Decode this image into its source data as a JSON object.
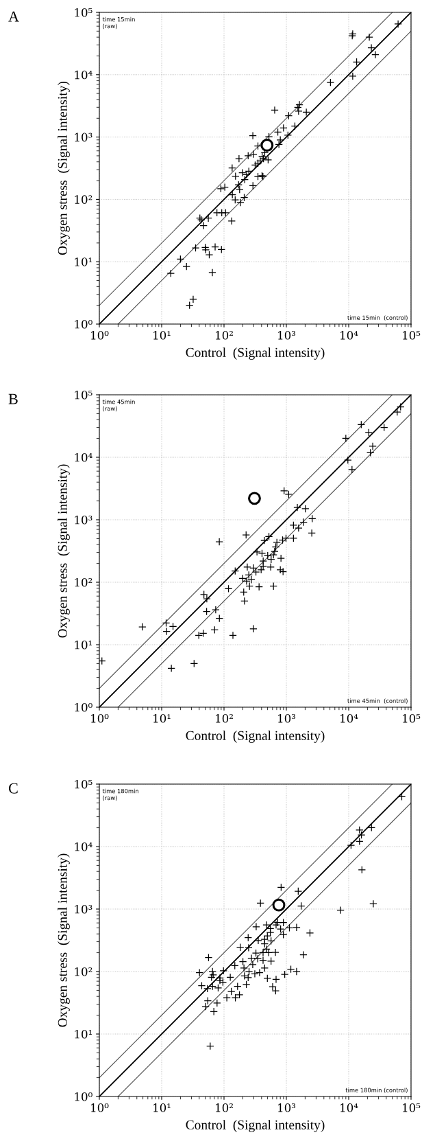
{
  "chart_data": [
    {
      "type": "scatter",
      "title": "A",
      "xlabel": "Control  (Signal intensity)",
      "ylabel": "Oxygen stress  (Signal intensity)",
      "annotations": [
        "time 15min\n(raw)",
        "time 15min  (control)"
      ],
      "log": "xy",
      "grid": true,
      "legend": false,
      "xlim": [
        1,
        100000
      ],
      "ylim": [
        1,
        100000
      ],
      "xticks": [
        {
          "value": 1,
          "label": "10⁰"
        },
        {
          "value": 10,
          "label": "10¹"
        },
        {
          "value": 100,
          "label": "10²"
        },
        {
          "value": 1000,
          "label": "10³"
        },
        {
          "value": 10000,
          "label": "10⁴"
        },
        {
          "value": 100000,
          "label": "10⁵"
        }
      ],
      "yticks": [
        {
          "value": 1,
          "label": "10⁰"
        },
        {
          "value": 10,
          "label": "10¹"
        },
        {
          "value": 100,
          "label": "10²"
        },
        {
          "value": 1000,
          "label": "10³"
        },
        {
          "value": 10000,
          "label": "10⁴"
        },
        {
          "value": 100000,
          "label": "10⁵"
        }
      ],
      "series": [
        {
          "type": "line",
          "color": "#000000",
          "marker": "none",
          "line_style": "solid",
          "x": [
            1,
            100000
          ],
          "values": [
            1,
            100000
          ]
        },
        {
          "type": "line",
          "color": "#555555",
          "marker": "none",
          "line_style": "solid",
          "x": [
            1,
            50000
          ],
          "values": [
            2,
            100000
          ]
        },
        {
          "type": "line",
          "color": "#555555",
          "marker": "none",
          "line_style": "solid",
          "x": [
            2,
            100000
          ],
          "values": [
            1,
            50000
          ]
        },
        {
          "color": "#000000",
          "marker": "cross",
          "x": [
            62000,
            11600,
            11400,
            21400,
            23100,
            26800,
            13400,
            11600,
            5100,
            1620,
            1530,
            1570,
            2090,
            650,
            1090,
            1370,
            900,
            730,
            1060,
            290,
            525,
            800,
            760,
            350,
            450,
            410,
            510,
            430,
            174,
            244,
            296,
            381,
            350,
            316,
            135,
            197,
            250,
            230,
            153,
            350,
            407,
            421,
            215,
            171,
            178,
            291,
            89,
            103,
            136,
            151,
            183,
            211,
            77,
            92,
            106,
            133,
            41,
            43,
            56,
            47,
            35,
            50,
            51,
            72,
            91,
            58,
            20,
            25,
            14,
            65,
            32,
            28
          ],
          "values": [
            65000,
            45000,
            42000,
            40000,
            27000,
            21000,
            16000,
            9500,
            7500,
            3300,
            3000,
            2600,
            2500,
            2700,
            2200,
            1500,
            1400,
            1200,
            1070,
            1050,
            1010,
            900,
            760,
            720,
            560,
            490,
            430,
            450,
            450,
            500,
            530,
            415,
            380,
            356,
            320,
            267,
            283,
            250,
            235,
            233,
            240,
            233,
            207,
            171,
            144,
            166,
            148,
            157,
            119,
            98,
            89,
            107,
            61,
            61,
            61,
            45,
            50,
            47,
            50,
            38,
            16.6,
            17,
            15.5,
            17.3,
            15.7,
            12.9,
            11,
            8.4,
            6.5,
            6.7,
            2.5,
            2.0
          ]
        },
        {
          "color": "#000000",
          "marker": "circle",
          "x": [
            490
          ],
          "values": [
            740
          ]
        }
      ]
    },
    {
      "type": "scatter",
      "title": "B",
      "xlabel": "Control  (Signal intensity)",
      "ylabel": "Oxygen stress  (Signal intensity)",
      "annotations": [
        "time 45min\n(raw)",
        "time 45min  (control)"
      ],
      "log": "xy",
      "grid": true,
      "legend": false,
      "xlim": [
        1,
        100000
      ],
      "ylim": [
        1,
        100000
      ],
      "xticks": [
        {
          "value": 1,
          "label": "10⁰"
        },
        {
          "value": 10,
          "label": "10¹"
        },
        {
          "value": 100,
          "label": "10²"
        },
        {
          "value": 1000,
          "label": "10³"
        },
        {
          "value": 10000,
          "label": "10⁴"
        },
        {
          "value": 100000,
          "label": "10⁵"
        }
      ],
      "yticks": [
        {
          "value": 1,
          "label": "10⁰"
        },
        {
          "value": 10,
          "label": "10¹"
        },
        {
          "value": 100,
          "label": "10²"
        },
        {
          "value": 1000,
          "label": "10³"
        },
        {
          "value": 10000,
          "label": "10⁴"
        },
        {
          "value": 100000,
          "label": "10⁵"
        }
      ],
      "series": [
        {
          "type": "line",
          "color": "#000000",
          "marker": "none",
          "line_style": "solid",
          "x": [
            1,
            100000
          ],
          "values": [
            1,
            100000
          ]
        },
        {
          "type": "line",
          "color": "#555555",
          "marker": "none",
          "line_style": "solid",
          "x": [
            1,
            50000
          ],
          "values": [
            2,
            100000
          ]
        },
        {
          "type": "line",
          "color": "#555555",
          "marker": "none",
          "line_style": "solid",
          "x": [
            2,
            100000
          ],
          "values": [
            1,
            50000
          ]
        },
        {
          "color": "#000000",
          "marker": "cross",
          "x": [
            68000,
            60000,
            15900,
            21000,
            37000,
            9000,
            24300,
            22300,
            9700,
            11300,
            920,
            1090,
            1500,
            2020,
            2600,
            1890,
            1300,
            1570,
            2560,
            226,
            84,
            525,
            444,
            987,
            1300,
            869,
            705,
            676,
            648,
            621,
            338,
            407,
            502,
            820,
            425,
            570,
            425,
            561,
            236,
            296,
            394,
            325,
            800,
            885,
            151,
            250,
            199,
            274,
            230,
            256,
            365,
            621,
            118,
            207,
            213,
            47.6,
            53,
            73.6,
            52.6,
            84.3,
            296,
            70.6,
            46.4,
            39.4,
            139,
            11.8,
            15.2,
            12,
            4.9,
            1.1,
            33.1,
            14.3
          ],
          "values": [
            64000,
            53000,
            33400,
            24900,
            29900,
            20100,
            15000,
            11800,
            9000,
            6350,
            2900,
            2560,
            1570,
            1500,
            1040,
            915,
            820,
            735,
            611,
            570,
            444,
            538,
            467,
            507,
            507,
            474,
            436,
            368,
            311,
            274,
            306,
            291,
            267,
            242,
            218,
            232,
            180,
            175,
            175,
            169,
            158,
            146,
            158,
            148,
            151,
            131,
            115,
            110,
            104,
            86.5,
            84.3,
            86.5,
            78.7,
            69.5,
            50,
            63.8,
            54.3,
            36.3,
            34,
            26.4,
            18,
            17.3,
            15.2,
            14.1,
            14.1,
            22.3,
            19.6,
            16.3,
            19.3,
            5.5,
            5.0,
            4.2
          ]
        },
        {
          "color": "#000000",
          "marker": "circle",
          "x": [
            308
          ],
          "values": [
            2200
          ]
        }
      ]
    },
    {
      "type": "scatter",
      "title": "C",
      "xlabel": "Control  (Signal intensity)",
      "ylabel": "Oxygen stress  (Signal intensity)",
      "annotations": [
        "time 180min\n(raw)",
        "time 180min (control)"
      ],
      "log": "xy",
      "grid": true,
      "legend": false,
      "xlim": [
        1,
        100000
      ],
      "ylim": [
        1,
        100000
      ],
      "xticks": [
        {
          "value": 1,
          "label": "10⁰"
        },
        {
          "value": 10,
          "label": "10¹"
        },
        {
          "value": 100,
          "label": "10²"
        },
        {
          "value": 1000,
          "label": "10³"
        },
        {
          "value": 10000,
          "label": "10⁴"
        },
        {
          "value": 100000,
          "label": "10⁵"
        }
      ],
      "yticks": [
        {
          "value": 1,
          "label": "10⁰"
        },
        {
          "value": 10,
          "label": "10¹"
        },
        {
          "value": 100,
          "label": "10²"
        },
        {
          "value": 1000,
          "label": "10³"
        },
        {
          "value": 10000,
          "label": "10⁴"
        },
        {
          "value": 100000,
          "label": "10⁵"
        }
      ],
      "series": [
        {
          "type": "line",
          "color": "#000000",
          "marker": "none",
          "line_style": "solid",
          "x": [
            1,
            100000
          ],
          "values": [
            1,
            100000
          ]
        },
        {
          "type": "line",
          "color": "#555555",
          "marker": "none",
          "line_style": "solid",
          "x": [
            1,
            50000
          ],
          "values": [
            2,
            100000
          ]
        },
        {
          "type": "line",
          "color": "#555555",
          "marker": "none",
          "line_style": "solid",
          "x": [
            2,
            100000
          ],
          "values": [
            1,
            50000
          ]
        },
        {
          "color": "#000000",
          "marker": "cross",
          "x": [
            71000,
            14900,
            23200,
            16000,
            14900,
            10900,
            16300,
            24800,
            7400,
            824,
            1550,
            384,
            1730,
            726,
            896,
            684,
            480,
            328,
            553,
            809,
            1120,
            1460,
            2390,
            896,
            553,
            496,
            244,
            448,
            354,
            568,
            448,
            182,
            248,
            480,
            325,
            423,
            521,
            667,
            1880,
            56.5,
            275,
            348,
            423,
            568,
            201,
            149,
            289,
            448,
            209,
            1180,
            1460,
            40.4,
            65.3,
            98,
            67,
            252,
            312,
            372,
            942,
            63,
            86,
            126,
            213,
            244,
            496,
            684,
            86,
            96,
            43.9,
            65.3,
            54.2,
            80.5,
            165,
            228,
            603,
            673,
            131,
            111,
            152,
            177,
            55,
            77.3,
            50.7,
            68.7,
            60
          ],
          "values": [
            63000,
            18400,
            20100,
            15300,
            12100,
            10500,
            4250,
            1210,
            959,
            2230,
            1930,
            1240,
            1120,
            607,
            607,
            558,
            558,
            521,
            488,
            480,
            500,
            508,
            415,
            388,
            423,
            372,
            348,
            328,
            314,
            309,
            277,
            244,
            240,
            228,
            197,
            201,
            201,
            202,
            185,
            167,
            163,
            160,
            151,
            147,
            144,
            124,
            129,
            114,
            114,
            109,
            100,
            96,
            100,
            103,
            88.5,
            100,
            92,
            96,
            90,
            81,
            79,
            81,
            85,
            80,
            78,
            75,
            71.6,
            67.5,
            59.4,
            58,
            53.3,
            54.7,
            58,
            62,
            57,
            49,
            48,
            38,
            38,
            42.5,
            34,
            31.3,
            27.5,
            22.9,
            6.4
          ]
        },
        {
          "color": "#000000",
          "marker": "circle",
          "x": [
            757
          ],
          "values": [
            1160
          ]
        }
      ]
    }
  ]
}
